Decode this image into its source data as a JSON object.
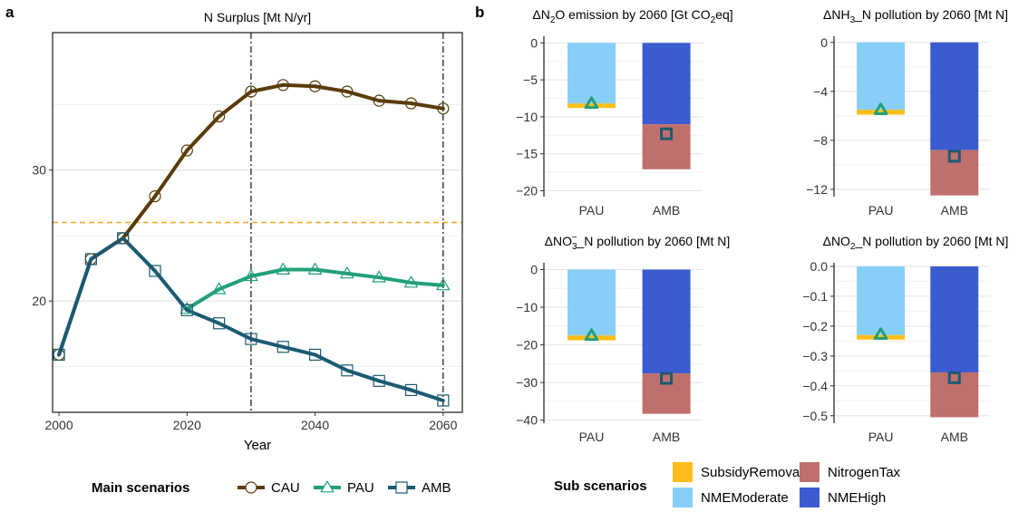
{
  "panel_labels": [
    "a",
    "b"
  ],
  "chart_data": [
    {
      "type": "line",
      "title": "N Surplus [Mt N/yr]",
      "xlabel": "Year",
      "ylabel": "",
      "xlim": [
        1999,
        2063
      ],
      "ylim": [
        11.5,
        40.5
      ],
      "xticks": [
        2000,
        2020,
        2040,
        2060
      ],
      "yticks": [
        20,
        30
      ],
      "grid": true,
      "reference_hline": 26,
      "reference_vlines": [
        2030,
        2060
      ],
      "x": [
        2000,
        2005,
        2010,
        2015,
        2020,
        2025,
        2030,
        2035,
        2040,
        2045,
        2050,
        2055,
        2060
      ],
      "series": [
        {
          "name": "CAU",
          "color": "#5a3b08",
          "marker": "circle",
          "x": [
            2000,
            2005,
            2010,
            2015,
            2020,
            2025,
            2030,
            2035,
            2040,
            2045,
            2050,
            2055,
            2060
          ],
          "values": [
            15.9,
            23.2,
            24.8,
            28.0,
            31.5,
            34.1,
            36.0,
            36.5,
            36.4,
            36.0,
            35.3,
            35.1,
            34.7
          ]
        },
        {
          "name": "PAU",
          "color": "#21a07a",
          "marker": "triangle",
          "x": [
            2020,
            2025,
            2030,
            2035,
            2040,
            2045,
            2050,
            2055,
            2060
          ],
          "values": [
            19.4,
            20.9,
            21.9,
            22.4,
            22.4,
            22.1,
            21.8,
            21.4,
            21.2
          ]
        },
        {
          "name": "AMB",
          "color": "#1b5a73",
          "marker": "square",
          "x": [
            2000,
            2005,
            2010,
            2015,
            2020,
            2025,
            2030,
            2035,
            2040,
            2045,
            2050,
            2055,
            2060
          ],
          "values": [
            15.9,
            23.2,
            24.8,
            22.3,
            19.3,
            18.3,
            17.1,
            16.5,
            15.9,
            14.7,
            13.9,
            13.2,
            12.4
          ]
        }
      ],
      "legend": {
        "title": "Main scenarios",
        "position": "bottom",
        "labels": [
          "CAU",
          "PAU",
          "AMB"
        ]
      }
    },
    {
      "type": "bar",
      "title_parts": [
        "ΔN",
        "2",
        "O emission by 2060 [Gt CO",
        "2",
        "eq]"
      ],
      "categories": [
        "PAU",
        "AMB"
      ],
      "ylim": [
        -20.8,
        0.9
      ],
      "yticks": [
        0,
        -5,
        -10,
        -15,
        -20
      ],
      "series": [
        {
          "name": "NMEModerate",
          "values": [
            -8.2,
            0
          ]
        },
        {
          "name": "SubsidyRemoval",
          "values": [
            -0.6,
            0
          ]
        },
        {
          "name": "NMEHigh",
          "values": [
            0,
            -11.0
          ]
        },
        {
          "name": "NitrogenTax",
          "values": [
            0,
            -6.1
          ]
        }
      ],
      "markers": [
        {
          "category": "PAU",
          "shape": "triangle",
          "value": -8.2
        },
        {
          "category": "AMB",
          "shape": "square",
          "value": -12.3
        }
      ]
    },
    {
      "type": "bar",
      "title_parts": [
        "ΔNH",
        "3",
        "_N pollution by 2060 [Mt N]"
      ],
      "categories": [
        "PAU",
        "AMB"
      ],
      "ylim": [
        -12.6,
        0.5
      ],
      "yticks": [
        0,
        -4,
        -8,
        -12
      ],
      "series": [
        {
          "name": "NMEModerate",
          "values": [
            -5.5,
            0
          ]
        },
        {
          "name": "SubsidyRemoval",
          "values": [
            -0.4,
            0
          ]
        },
        {
          "name": "NMEHigh",
          "values": [
            0,
            -8.8
          ]
        },
        {
          "name": "NitrogenTax",
          "values": [
            0,
            -3.7
          ]
        }
      ],
      "markers": [
        {
          "category": "PAU",
          "shape": "triangle",
          "value": -5.5
        },
        {
          "category": "AMB",
          "shape": "square",
          "value": -9.3
        }
      ]
    },
    {
      "type": "bar",
      "title_parts": [
        "ΔNO",
        "3",
        "−",
        "_N pollution by 2060 [Mt N]"
      ],
      "categories": [
        "PAU",
        "AMB"
      ],
      "ylim": [
        -40.8,
        1.8
      ],
      "yticks": [
        0,
        -10,
        -20,
        -30,
        -40
      ],
      "series": [
        {
          "name": "NMEModerate",
          "values": [
            -17.5,
            0
          ]
        },
        {
          "name": "SubsidyRemoval",
          "values": [
            -1.3,
            0
          ]
        },
        {
          "name": "NMEHigh",
          "values": [
            0,
            -27.6
          ]
        },
        {
          "name": "NitrogenTax",
          "values": [
            0,
            -10.7
          ]
        }
      ],
      "markers": [
        {
          "category": "PAU",
          "shape": "triangle",
          "value": -17.5
        },
        {
          "category": "AMB",
          "shape": "square",
          "value": -28.9
        }
      ]
    },
    {
      "type": "bar",
      "title_parts": [
        "ΔNO",
        "2",
        "_N pollution by 2060 [Mt N]"
      ],
      "categories": [
        "PAU",
        "AMB"
      ],
      "ylim": [
        -0.525,
        0.012
      ],
      "yticks": [
        0.0,
        -0.1,
        -0.2,
        -0.3,
        -0.4,
        -0.5
      ],
      "series": [
        {
          "name": "NMEModerate",
          "values": [
            -0.23,
            0
          ]
        },
        {
          "name": "SubsidyRemoval",
          "values": [
            -0.015,
            0
          ]
        },
        {
          "name": "NMEHigh",
          "values": [
            0,
            -0.355
          ]
        },
        {
          "name": "NitrogenTax",
          "values": [
            0,
            -0.15
          ]
        }
      ],
      "markers": [
        {
          "category": "PAU",
          "shape": "triangle",
          "value": -0.228
        },
        {
          "category": "AMB",
          "shape": "square",
          "value": -0.373
        }
      ]
    }
  ],
  "sub_legend": {
    "title": "Sub scenarios",
    "items": [
      {
        "label": "SubsidyRemoval",
        "color": "#ffbe1a"
      },
      {
        "label": "NitrogenTax",
        "color": "#c0706c"
      },
      {
        "label": "NMEModerate",
        "color": "#87cef9"
      },
      {
        "label": "NMEHigh",
        "color": "#3b5bd1"
      }
    ]
  },
  "colors": {
    "NMEModerate": "#87cef9",
    "SubsidyRemoval": "#ffbe1a",
    "NMEHigh": "#3b5bd1",
    "NitrogenTax": "#c0706c",
    "PAU_marker": "#21a07a",
    "AMB_marker": "#1b5a73",
    "reference_line": "#f5a623"
  }
}
